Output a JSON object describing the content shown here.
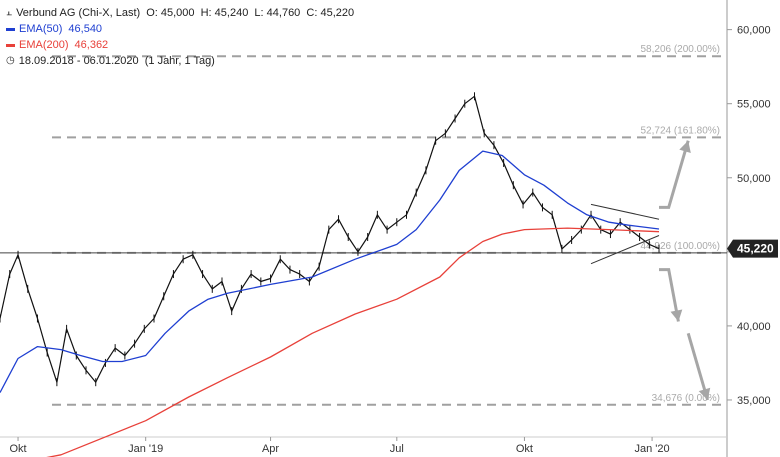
{
  "legend": {
    "instrument": "Verbund AG (Chi-X, Last)",
    "ohlc": "O: 45,000  H: 45,240  L: 44,760  C: 45,220",
    "ema50_label": "EMA(50)",
    "ema50_value": "46,540",
    "ema200_label": "EMA(200)",
    "ema200_value": "46,362",
    "period": "18.09.2018 - 06.01.2020  (1 Jahr, 1 Tag)",
    "chart_icon": "candlestick-icon",
    "clock_icon": "clock-icon"
  },
  "colors": {
    "ema50": "#1f3fd1",
    "ema200": "#e8413a",
    "price": "#111111",
    "fib": "#a0a0a0",
    "arrow": "#a6a6a6",
    "price_tag": "#222222"
  },
  "chart_data": {
    "type": "line",
    "title": "Verbund AG (Chi-X, Last)",
    "xlabel": "",
    "ylabel": "",
    "ylim": [
      32500,
      62000
    ],
    "x_ticks": [
      "Okt",
      "Jan '19",
      "Apr",
      "Jul",
      "Okt",
      "Jan '20"
    ],
    "x_tick_dates": [
      "2018-10-01",
      "2019-01-01",
      "2019-04-01",
      "2019-07-01",
      "2019-10-01",
      "2020-01-01"
    ],
    "x_range": [
      "2018-09-18",
      "2020-02-24"
    ],
    "y_ticks": [
      {
        "value": 35000,
        "label": "35,000"
      },
      {
        "value": 40000,
        "label": "40,000"
      },
      {
        "value": 45000,
        "label": "45,000"
      },
      {
        "value": 50000,
        "label": "50,000"
      },
      {
        "value": 55000,
        "label": "55,000"
      },
      {
        "value": 60000,
        "label": "60,000"
      }
    ],
    "last_price": {
      "value": 45220,
      "label": "45,220"
    },
    "fib_levels": [
      {
        "value": 58206,
        "label": "58,206 (200.00%)"
      },
      {
        "value": 52724,
        "label": "52,724 (161.80%)"
      },
      {
        "value": 44926,
        "label": "44,926 (100.00%)"
      },
      {
        "value": 34676,
        "label": "34,676 (0.00%)"
      }
    ],
    "series": [
      {
        "name": "Verbund AG",
        "style": "price",
        "points": [
          [
            "2018-09-18",
            40500
          ],
          [
            "2018-09-25",
            43500
          ],
          [
            "2018-10-01",
            44800
          ],
          [
            "2018-10-08",
            42500
          ],
          [
            "2018-10-15",
            40500
          ],
          [
            "2018-10-22",
            38200
          ],
          [
            "2018-10-29",
            36200
          ],
          [
            "2018-11-05",
            39800
          ],
          [
            "2018-11-12",
            38000
          ],
          [
            "2018-11-19",
            37000
          ],
          [
            "2018-11-26",
            36200
          ],
          [
            "2018-12-03",
            37500
          ],
          [
            "2018-12-10",
            38500
          ],
          [
            "2018-12-17",
            38000
          ],
          [
            "2018-12-24",
            38800
          ],
          [
            "2018-12-31",
            39800
          ],
          [
            "2019-01-07",
            40500
          ],
          [
            "2019-01-14",
            42000
          ],
          [
            "2019-01-21",
            43500
          ],
          [
            "2019-01-28",
            44500
          ],
          [
            "2019-02-04",
            44800
          ],
          [
            "2019-02-11",
            43500
          ],
          [
            "2019-02-18",
            42500
          ],
          [
            "2019-02-25",
            43000
          ],
          [
            "2019-03-04",
            41000
          ],
          [
            "2019-03-11",
            42500
          ],
          [
            "2019-03-18",
            43500
          ],
          [
            "2019-03-25",
            43000
          ],
          [
            "2019-04-01",
            43200
          ],
          [
            "2019-04-08",
            44500
          ],
          [
            "2019-04-15",
            43800
          ],
          [
            "2019-04-22",
            43500
          ],
          [
            "2019-04-29",
            43000
          ],
          [
            "2019-05-06",
            44000
          ],
          [
            "2019-05-13",
            46500
          ],
          [
            "2019-05-20",
            47200
          ],
          [
            "2019-05-27",
            46000
          ],
          [
            "2019-06-03",
            45000
          ],
          [
            "2019-06-10",
            46000
          ],
          [
            "2019-06-17",
            47500
          ],
          [
            "2019-06-24",
            46500
          ],
          [
            "2019-07-01",
            47000
          ],
          [
            "2019-07-08",
            47500
          ],
          [
            "2019-07-15",
            49000
          ],
          [
            "2019-07-22",
            50500
          ],
          [
            "2019-07-29",
            52500
          ],
          [
            "2019-08-05",
            53000
          ],
          [
            "2019-08-12",
            54000
          ],
          [
            "2019-08-19",
            55000
          ],
          [
            "2019-08-26",
            55500
          ],
          [
            "2019-09-02",
            53000
          ],
          [
            "2019-09-09",
            52200
          ],
          [
            "2019-09-16",
            51000
          ],
          [
            "2019-09-23",
            49500
          ],
          [
            "2019-09-30",
            48200
          ],
          [
            "2019-10-07",
            49000
          ],
          [
            "2019-10-14",
            48000
          ],
          [
            "2019-10-21",
            47500
          ],
          [
            "2019-10-28",
            45200
          ],
          [
            "2019-11-04",
            45800
          ],
          [
            "2019-11-11",
            46500
          ],
          [
            "2019-11-18",
            47500
          ],
          [
            "2019-11-25",
            46500
          ],
          [
            "2019-12-02",
            46200
          ],
          [
            "2019-12-09",
            47000
          ],
          [
            "2019-12-16",
            46500
          ],
          [
            "2019-12-23",
            46000
          ],
          [
            "2019-12-30",
            45500
          ],
          [
            "2020-01-06",
            45220
          ]
        ]
      },
      {
        "name": "EMA(50)",
        "style": "ema50",
        "points": [
          [
            "2018-09-18",
            35500
          ],
          [
            "2018-10-01",
            37800
          ],
          [
            "2018-10-15",
            38600
          ],
          [
            "2018-11-01",
            38400
          ],
          [
            "2018-11-15",
            38000
          ],
          [
            "2018-12-01",
            37600
          ],
          [
            "2018-12-15",
            37600
          ],
          [
            "2019-01-01",
            38000
          ],
          [
            "2019-01-15",
            39500
          ],
          [
            "2019-02-01",
            41000
          ],
          [
            "2019-02-15",
            41800
          ],
          [
            "2019-03-01",
            42200
          ],
          [
            "2019-04-01",
            42800
          ],
          [
            "2019-05-01",
            43300
          ],
          [
            "2019-06-01",
            44500
          ],
          [
            "2019-07-01",
            45500
          ],
          [
            "2019-07-15",
            46500
          ],
          [
            "2019-08-01",
            48500
          ],
          [
            "2019-08-15",
            50500
          ],
          [
            "2019-09-01",
            51800
          ],
          [
            "2019-09-15",
            51500
          ],
          [
            "2019-10-01",
            50200
          ],
          [
            "2019-10-15",
            49500
          ],
          [
            "2019-11-01",
            48300
          ],
          [
            "2019-11-15",
            47500
          ],
          [
            "2019-12-01",
            47000
          ],
          [
            "2019-12-15",
            46800
          ],
          [
            "2020-01-06",
            46540
          ]
        ]
      },
      {
        "name": "EMA(200)",
        "style": "ema200",
        "points": [
          [
            "2018-09-18",
            30500
          ],
          [
            "2018-11-01",
            31300
          ],
          [
            "2019-01-01",
            33600
          ],
          [
            "2019-02-01",
            35200
          ],
          [
            "2019-03-01",
            36500
          ],
          [
            "2019-04-01",
            37900
          ],
          [
            "2019-05-01",
            39500
          ],
          [
            "2019-06-01",
            40800
          ],
          [
            "2019-07-01",
            41800
          ],
          [
            "2019-08-01",
            43300
          ],
          [
            "2019-08-15",
            44600
          ],
          [
            "2019-09-01",
            45700
          ],
          [
            "2019-09-15",
            46200
          ],
          [
            "2019-10-01",
            46500
          ],
          [
            "2019-11-01",
            46600
          ],
          [
            "2019-12-01",
            46500
          ],
          [
            "2020-01-06",
            46362
          ]
        ]
      }
    ],
    "annotations": {
      "horizontal_line": 44926,
      "triangle_upper": [
        [
          "2019-11-18",
          48200
        ],
        [
          "2020-01-06",
          47200
        ]
      ],
      "triangle_lower": [
        [
          "2019-11-18",
          44200
        ],
        [
          "2020-01-06",
          46100
        ]
      ],
      "arrow_up": [
        [
          "2020-01-06",
          48000
        ],
        [
          "2020-01-13",
          48000
        ],
        [
          "2020-01-27",
          52500
        ]
      ],
      "arrow_down": [
        [
          "2020-01-06",
          43800
        ],
        [
          "2020-01-13",
          43800
        ],
        [
          "2020-01-20",
          40300
        ]
      ],
      "arrow_down_2": [
        [
          "2020-01-27",
          39500
        ],
        [
          "2020-02-10",
          35000
        ]
      ]
    }
  }
}
